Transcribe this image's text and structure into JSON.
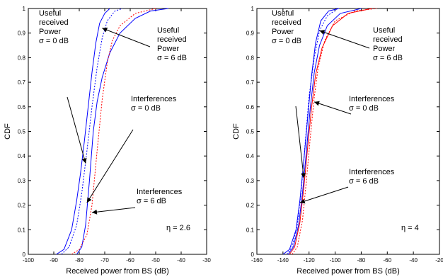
{
  "chart_data": [
    {
      "type": "line",
      "xlabel": "Received power from BS (dB)",
      "ylabel": "CDF",
      "xlim": [
        -100,
        -30
      ],
      "ylim": [
        0,
        1
      ],
      "xticks": [
        "-100",
        "-90",
        "-80",
        "-70",
        "-60",
        "-50",
        "-40",
        "-30"
      ],
      "yticks": [
        "0",
        "0.1",
        "0.2",
        "0.3",
        "0.4",
        "0.5",
        "0.6",
        "0.7",
        "0.8",
        "0.9",
        "1"
      ],
      "grid": false,
      "eta_label": "η = 2.6",
      "annotations": [
        {
          "lines": [
            "Useful",
            "received",
            "Power",
            "σ = 0 dB"
          ],
          "arrow_to": [
            -77.5,
            0.37
          ]
        },
        {
          "lines": [
            "Useful",
            "received",
            "Power",
            "σ = 6 dB"
          ],
          "arrow_to": [
            -71,
            0.92
          ]
        },
        {
          "lines": [
            "Interferences",
            "σ = 0 dB"
          ],
          "arrow_to": [
            -77,
            0.21
          ]
        },
        {
          "lines": [
            "Interferences",
            "σ = 6 dB"
          ],
          "arrow_to": [
            -75,
            0.17
          ]
        }
      ],
      "series": [
        {
          "color": "#0000ff",
          "dash": "none",
          "points": [
            [
              -89,
              0
            ],
            [
              -86,
              0.02
            ],
            [
              -83,
              0.1
            ],
            [
              -81,
              0.22
            ],
            [
              -79.5,
              0.33
            ],
            [
              -78,
              0.46
            ],
            [
              -76.5,
              0.6
            ],
            [
              -75,
              0.74
            ],
            [
              -73.5,
              0.86
            ],
            [
              -72,
              0.94
            ],
            [
              -70,
              0.98
            ],
            [
              -68,
              1
            ]
          ]
        },
        {
          "color": "#0000ff",
          "dash": "none",
          "points": [
            [
              -81,
              0
            ],
            [
              -79,
              0.03
            ],
            [
              -77.5,
              0.12
            ],
            [
              -76,
              0.3
            ],
            [
              -74.5,
              0.5
            ],
            [
              -73,
              0.62
            ],
            [
              -71,
              0.72
            ],
            [
              -68,
              0.82
            ],
            [
              -64,
              0.9
            ],
            [
              -58,
              0.96
            ],
            [
              -52,
              0.99
            ],
            [
              -45,
              1
            ]
          ]
        },
        {
          "color": "#0000ff",
          "dash": "2,2",
          "points": [
            [
              -87,
              0
            ],
            [
              -84,
              0.03
            ],
            [
              -81,
              0.12
            ],
            [
              -79,
              0.25
            ],
            [
              -77,
              0.42
            ],
            [
              -75,
              0.6
            ],
            [
              -73,
              0.76
            ],
            [
              -71,
              0.88
            ],
            [
              -69,
              0.95
            ],
            [
              -66,
              0.99
            ],
            [
              -63,
              1
            ]
          ]
        },
        {
          "color": "#ff0000",
          "dash": "2,2",
          "points": [
            [
              -83,
              0
            ],
            [
              -80,
              0.02
            ],
            [
              -77,
              0.08
            ],
            [
              -75,
              0.2
            ],
            [
              -73,
              0.42
            ],
            [
              -71,
              0.63
            ],
            [
              -69,
              0.78
            ],
            [
              -67,
              0.87
            ],
            [
              -64,
              0.93
            ],
            [
              -58,
              0.98
            ],
            [
              -50,
              1
            ]
          ]
        }
      ]
    },
    {
      "type": "line",
      "xlabel": "Received power from BS (dB)",
      "ylabel": "CDF",
      "xlim": [
        -160,
        -20
      ],
      "ylim": [
        0,
        1
      ],
      "xticks": [
        "-160",
        "-140",
        "-120",
        "-100",
        "-80",
        "-60",
        "-40",
        "-20"
      ],
      "yticks": [
        "0",
        "0.1",
        "0.2",
        "0.3",
        "0.4",
        "0.5",
        "0.6",
        "0.7",
        "0.8",
        "0.9",
        "1"
      ],
      "grid": false,
      "eta_label": "η = 4",
      "annotations": [
        {
          "lines": [
            "Useful",
            "received",
            "Power",
            "σ = 0 dB"
          ],
          "arrow_to": [
            -124,
            0.31
          ]
        },
        {
          "lines": [
            "Useful",
            "received",
            "Power",
            "σ = 6 dB"
          ],
          "arrow_to": [
            -112,
            0.91
          ]
        },
        {
          "lines": [
            "Interferences",
            "σ = 0 dB"
          ],
          "arrow_to": [
            -116,
            0.62
          ]
        },
        {
          "lines": [
            "Interferences",
            "σ = 6 dB"
          ],
          "arrow_to": [
            -127,
            0.21
          ]
        }
      ],
      "series": [
        {
          "color": "#0000ff",
          "dash": "none",
          "points": [
            [
              -140,
              0
            ],
            [
              -135,
              0.02
            ],
            [
              -130,
              0.1
            ],
            [
              -127,
              0.22
            ],
            [
              -124,
              0.38
            ],
            [
              -121,
              0.56
            ],
            [
              -118,
              0.73
            ],
            [
              -115,
              0.86
            ],
            [
              -111,
              0.95
            ],
            [
              -105,
              0.99
            ],
            [
              -97,
              1
            ]
          ]
        },
        {
          "color": "#0000ff",
          "dash": "none",
          "points": [
            [
              -136,
              0
            ],
            [
              -132,
              0.03
            ],
            [
              -128,
              0.12
            ],
            [
              -125,
              0.25
            ],
            [
              -122,
              0.42
            ],
            [
              -119,
              0.6
            ],
            [
              -116,
              0.74
            ],
            [
              -112,
              0.85
            ],
            [
              -106,
              0.93
            ],
            [
              -96,
              0.98
            ],
            [
              -80,
              1
            ]
          ]
        },
        {
          "color": "#ff0000",
          "dash": "none",
          "points": [
            [
              -135,
              0
            ],
            [
              -131,
              0.03
            ],
            [
              -127,
              0.13
            ],
            [
              -124,
              0.27
            ],
            [
              -121,
              0.44
            ],
            [
              -118,
              0.6
            ],
            [
              -115,
              0.73
            ],
            [
              -110,
              0.84
            ],
            [
              -102,
              0.93
            ],
            [
              -90,
              0.98
            ],
            [
              -72,
              1
            ]
          ]
        },
        {
          "color": "#0000ff",
          "dash": "2,2",
          "points": [
            [
              -137,
              0
            ],
            [
              -133,
              0.03
            ],
            [
              -129,
              0.12
            ],
            [
              -126,
              0.26
            ],
            [
              -123,
              0.45
            ],
            [
              -120,
              0.64
            ],
            [
              -116,
              0.8
            ],
            [
              -112,
              0.91
            ],
            [
              -106,
              0.97
            ],
            [
              -98,
              1
            ]
          ]
        },
        {
          "color": "#ff0000",
          "dash": "2,2",
          "points": [
            [
              -133,
              0
            ],
            [
              -129,
              0.03
            ],
            [
              -125,
              0.14
            ],
            [
              -122,
              0.3
            ],
            [
              -119,
              0.48
            ],
            [
              -116,
              0.64
            ],
            [
              -113,
              0.76
            ],
            [
              -108,
              0.87
            ],
            [
              -100,
              0.95
            ],
            [
              -85,
              0.99
            ],
            [
              -68,
              1
            ]
          ]
        }
      ]
    }
  ]
}
